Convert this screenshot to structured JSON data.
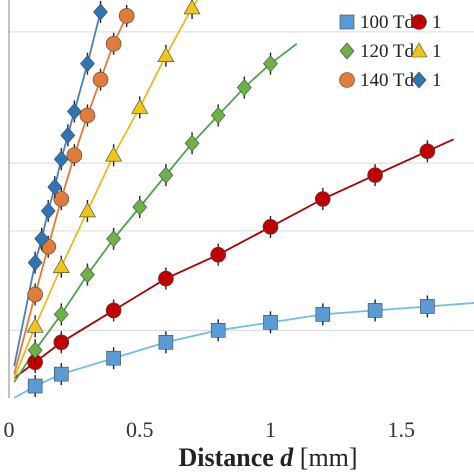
{
  "chart_data": {
    "type": "line",
    "title": "",
    "xlabel_prefix": "Distance ",
    "xlabel_var": "d",
    "xlabel_unit": " [mm]",
    "xlim": [
      0,
      1.8
    ],
    "ylim": [
      0,
      1.0
    ],
    "grid": "horizontal",
    "legend_placement": "top-right",
    "x_ticks": [
      {
        "value": 0,
        "label": "0"
      },
      {
        "value": 0.5,
        "label": "0.5"
      },
      {
        "value": 1,
        "label": "1"
      },
      {
        "value": 1.5,
        "label": "1.5"
      }
    ],
    "y_grid": [
      0.17,
      0.42,
      0.59,
      0.92
    ],
    "series": [
      {
        "name": "100 Td",
        "marker": "square",
        "color": "#5b9bd5",
        "line_color": "#6fc0e0",
        "x": [
          0.1,
          0.2,
          0.4,
          0.6,
          0.8,
          1.0,
          1.2,
          1.4,
          1.6
        ],
        "y": [
          0.03,
          0.06,
          0.1,
          0.14,
          0.17,
          0.19,
          0.21,
          0.22,
          0.23
        ],
        "fit": [
          [
            0.02,
            0.0
          ],
          [
            0.1,
            0.03
          ],
          [
            0.2,
            0.06
          ],
          [
            0.4,
            0.1
          ],
          [
            0.6,
            0.14
          ],
          [
            0.8,
            0.17
          ],
          [
            1.0,
            0.19
          ],
          [
            1.2,
            0.21
          ],
          [
            1.4,
            0.22
          ],
          [
            1.6,
            0.23
          ],
          [
            1.8,
            0.24
          ]
        ]
      },
      {
        "name": "1",
        "marker": "circle",
        "color": "#c00000",
        "line_color": "#a80000",
        "x": [
          0.1,
          0.2,
          0.4,
          0.6,
          0.8,
          1.0,
          1.2,
          1.4,
          1.6
        ],
        "y": [
          0.09,
          0.14,
          0.22,
          0.3,
          0.36,
          0.43,
          0.5,
          0.56,
          0.62
        ],
        "fit": [
          [
            0.02,
            0.05
          ],
          [
            0.1,
            0.09
          ],
          [
            0.2,
            0.14
          ],
          [
            0.4,
            0.22
          ],
          [
            0.6,
            0.3
          ],
          [
            0.8,
            0.36
          ],
          [
            1.0,
            0.43
          ],
          [
            1.2,
            0.5
          ],
          [
            1.4,
            0.56
          ],
          [
            1.6,
            0.62
          ],
          [
            1.7,
            0.65
          ]
        ]
      },
      {
        "name": "120 Td",
        "marker": "diamond",
        "color": "#6cb246",
        "line_color": "#4fa34a",
        "x": [
          0.1,
          0.2,
          0.3,
          0.4,
          0.5,
          0.6,
          0.7,
          0.8,
          0.9,
          1.0
        ],
        "y": [
          0.12,
          0.21,
          0.31,
          0.4,
          0.48,
          0.56,
          0.64,
          0.71,
          0.78,
          0.84
        ],
        "fit": [
          [
            0.02,
            0.04
          ],
          [
            0.1,
            0.12
          ],
          [
            0.2,
            0.21
          ],
          [
            0.3,
            0.31
          ],
          [
            0.4,
            0.4
          ],
          [
            0.5,
            0.48
          ],
          [
            0.6,
            0.56
          ],
          [
            0.7,
            0.64
          ],
          [
            0.8,
            0.71
          ],
          [
            0.9,
            0.78
          ],
          [
            1.0,
            0.84
          ],
          [
            1.1,
            0.89
          ]
        ]
      },
      {
        "name": "1",
        "marker": "triangle",
        "color": "#f0c419",
        "line_color": "#e8b923",
        "x": [
          0.1,
          0.2,
          0.3,
          0.4,
          0.5,
          0.6,
          0.7
        ],
        "y": [
          0.18,
          0.33,
          0.47,
          0.61,
          0.73,
          0.86,
          0.98
        ],
        "fit": [
          [
            0.02,
            0.05
          ],
          [
            0.1,
            0.18
          ],
          [
            0.2,
            0.33
          ],
          [
            0.3,
            0.47
          ],
          [
            0.4,
            0.61
          ],
          [
            0.5,
            0.73
          ],
          [
            0.6,
            0.86
          ],
          [
            0.7,
            0.98
          ],
          [
            0.72,
            1.0
          ]
        ]
      },
      {
        "name": "140 Td",
        "marker": "circle",
        "color": "#e07b39",
        "line_color": "#e07b39",
        "x": [
          0.1,
          0.15,
          0.2,
          0.25,
          0.3,
          0.35,
          0.4,
          0.45
        ],
        "y": [
          0.26,
          0.38,
          0.5,
          0.61,
          0.71,
          0.8,
          0.89,
          0.96
        ],
        "fit": [
          [
            0.02,
            0.06
          ],
          [
            0.1,
            0.26
          ],
          [
            0.15,
            0.38
          ],
          [
            0.2,
            0.5
          ],
          [
            0.25,
            0.61
          ],
          [
            0.3,
            0.71
          ],
          [
            0.35,
            0.8
          ],
          [
            0.4,
            0.89
          ],
          [
            0.45,
            0.96
          ]
        ]
      },
      {
        "name": "1",
        "marker": "diamond",
        "color": "#2e75b6",
        "line_color": "#4a7fbf",
        "x": [
          0.1,
          0.125,
          0.15,
          0.175,
          0.2,
          0.225,
          0.25,
          0.3,
          0.35
        ],
        "y": [
          0.34,
          0.4,
          0.47,
          0.53,
          0.6,
          0.66,
          0.72,
          0.84,
          0.97
        ],
        "fit": [
          [
            0.02,
            0.08
          ],
          [
            0.1,
            0.34
          ],
          [
            0.125,
            0.4
          ],
          [
            0.15,
            0.47
          ],
          [
            0.175,
            0.53
          ],
          [
            0.2,
            0.6
          ],
          [
            0.225,
            0.66
          ],
          [
            0.25,
            0.72
          ],
          [
            0.3,
            0.84
          ],
          [
            0.35,
            0.97
          ]
        ]
      }
    ]
  }
}
